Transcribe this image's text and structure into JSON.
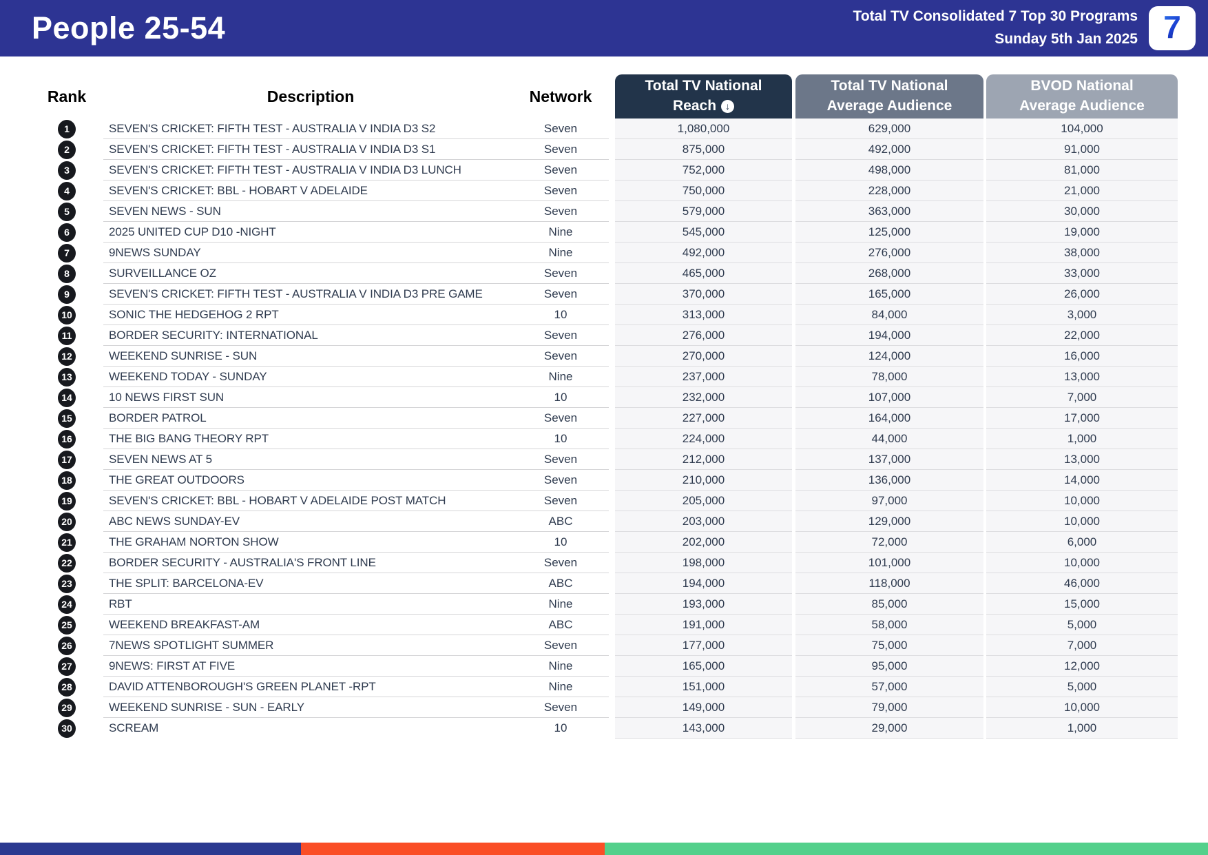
{
  "header": {
    "title": "People 25-54",
    "subtitle_line1": "Total TV Consolidated 7 Top 30 Programs",
    "subtitle_line2": "Sunday 5th Jan 2025",
    "logo_text": "7"
  },
  "table": {
    "columns": {
      "rank": "Rank",
      "description": "Description",
      "network": "Network",
      "reach_line1": "Total TV National",
      "reach_line2": "Reach",
      "reach_sort_icon": "↓",
      "avg_line1": "Total TV National",
      "avg_line2": "Average Audience",
      "bvod_line1": "BVOD National",
      "bvod_line2": "Average Audience"
    },
    "rows": [
      {
        "rank": "1",
        "description": "SEVEN'S CRICKET: FIFTH TEST - AUSTRALIA V INDIA D3 S2",
        "network": "Seven",
        "reach": "1,080,000",
        "avg": "629,000",
        "bvod": "104,000"
      },
      {
        "rank": "2",
        "description": "SEVEN'S CRICKET: FIFTH TEST - AUSTRALIA V INDIA D3 S1",
        "network": "Seven",
        "reach": "875,000",
        "avg": "492,000",
        "bvod": "91,000"
      },
      {
        "rank": "3",
        "description": "SEVEN'S CRICKET: FIFTH TEST - AUSTRALIA V INDIA D3 LUNCH",
        "network": "Seven",
        "reach": "752,000",
        "avg": "498,000",
        "bvod": "81,000"
      },
      {
        "rank": "4",
        "description": "SEVEN'S CRICKET: BBL - HOBART V ADELAIDE",
        "network": "Seven",
        "reach": "750,000",
        "avg": "228,000",
        "bvod": "21,000"
      },
      {
        "rank": "5",
        "description": "SEVEN NEWS - SUN",
        "network": "Seven",
        "reach": "579,000",
        "avg": "363,000",
        "bvod": "30,000"
      },
      {
        "rank": "6",
        "description": "2025 UNITED CUP D10 -NIGHT",
        "network": "Nine",
        "reach": "545,000",
        "avg": "125,000",
        "bvod": "19,000"
      },
      {
        "rank": "7",
        "description": "9NEWS SUNDAY",
        "network": "Nine",
        "reach": "492,000",
        "avg": "276,000",
        "bvod": "38,000"
      },
      {
        "rank": "8",
        "description": "SURVEILLANCE OZ",
        "network": "Seven",
        "reach": "465,000",
        "avg": "268,000",
        "bvod": "33,000"
      },
      {
        "rank": "9",
        "description": "SEVEN'S CRICKET: FIFTH TEST - AUSTRALIA V INDIA D3 PRE GAME",
        "network": "Seven",
        "reach": "370,000",
        "avg": "165,000",
        "bvod": "26,000"
      },
      {
        "rank": "10",
        "description": "SONIC THE HEDGEHOG 2 RPT",
        "network": "10",
        "reach": "313,000",
        "avg": "84,000",
        "bvod": "3,000"
      },
      {
        "rank": "11",
        "description": "BORDER SECURITY: INTERNATIONAL",
        "network": "Seven",
        "reach": "276,000",
        "avg": "194,000",
        "bvod": "22,000"
      },
      {
        "rank": "12",
        "description": "WEEKEND SUNRISE - SUN",
        "network": "Seven",
        "reach": "270,000",
        "avg": "124,000",
        "bvod": "16,000"
      },
      {
        "rank": "13",
        "description": "WEEKEND TODAY - SUNDAY",
        "network": "Nine",
        "reach": "237,000",
        "avg": "78,000",
        "bvod": "13,000"
      },
      {
        "rank": "14",
        "description": "10 NEWS FIRST SUN",
        "network": "10",
        "reach": "232,000",
        "avg": "107,000",
        "bvod": "7,000"
      },
      {
        "rank": "15",
        "description": "BORDER PATROL",
        "network": "Seven",
        "reach": "227,000",
        "avg": "164,000",
        "bvod": "17,000"
      },
      {
        "rank": "16",
        "description": "THE BIG BANG THEORY RPT",
        "network": "10",
        "reach": "224,000",
        "avg": "44,000",
        "bvod": "1,000"
      },
      {
        "rank": "17",
        "description": "SEVEN NEWS AT 5",
        "network": "Seven",
        "reach": "212,000",
        "avg": "137,000",
        "bvod": "13,000"
      },
      {
        "rank": "18",
        "description": "THE GREAT OUTDOORS",
        "network": "Seven",
        "reach": "210,000",
        "avg": "136,000",
        "bvod": "14,000"
      },
      {
        "rank": "19",
        "description": "SEVEN'S CRICKET: BBL - HOBART V ADELAIDE POST MATCH",
        "network": "Seven",
        "reach": "205,000",
        "avg": "97,000",
        "bvod": "10,000"
      },
      {
        "rank": "20",
        "description": "ABC NEWS SUNDAY-EV",
        "network": "ABC",
        "reach": "203,000",
        "avg": "129,000",
        "bvod": "10,000"
      },
      {
        "rank": "21",
        "description": "THE GRAHAM NORTON SHOW",
        "network": "10",
        "reach": "202,000",
        "avg": "72,000",
        "bvod": "6,000"
      },
      {
        "rank": "22",
        "description": "BORDER SECURITY - AUSTRALIA'S FRONT LINE",
        "network": "Seven",
        "reach": "198,000",
        "avg": "101,000",
        "bvod": "10,000"
      },
      {
        "rank": "23",
        "description": "THE SPLIT: BARCELONA-EV",
        "network": "ABC",
        "reach": "194,000",
        "avg": "118,000",
        "bvod": "46,000"
      },
      {
        "rank": "24",
        "description": "RBT",
        "network": "Nine",
        "reach": "193,000",
        "avg": "85,000",
        "bvod": "15,000"
      },
      {
        "rank": "25",
        "description": "WEEKEND BREAKFAST-AM",
        "network": "ABC",
        "reach": "191,000",
        "avg": "58,000",
        "bvod": "5,000"
      },
      {
        "rank": "26",
        "description": "7NEWS SPOTLIGHT SUMMER",
        "network": "Seven",
        "reach": "177,000",
        "avg": "75,000",
        "bvod": "7,000"
      },
      {
        "rank": "27",
        "description": "9NEWS: FIRST AT FIVE",
        "network": "Nine",
        "reach": "165,000",
        "avg": "95,000",
        "bvod": "12,000"
      },
      {
        "rank": "28",
        "description": "DAVID ATTENBOROUGH'S GREEN PLANET -RPT",
        "network": "Nine",
        "reach": "151,000",
        "avg": "57,000",
        "bvod": "5,000"
      },
      {
        "rank": "29",
        "description": "WEEKEND SUNRISE - SUN - EARLY",
        "network": "Seven",
        "reach": "149,000",
        "avg": "79,000",
        "bvod": "10,000"
      },
      {
        "rank": "30",
        "description": "SCREAM",
        "network": "10",
        "reach": "143,000",
        "avg": "29,000",
        "bvod": "1,000"
      }
    ]
  },
  "colors": {
    "banner_blue": "#2d3493",
    "reach_header": "#22344a",
    "avg_header": "#6c7789",
    "bvod_header": "#9da5b2",
    "stripe_blue": "#2b3990",
    "stripe_orange": "#fa4e26",
    "stripe_green": "#53d08b"
  }
}
